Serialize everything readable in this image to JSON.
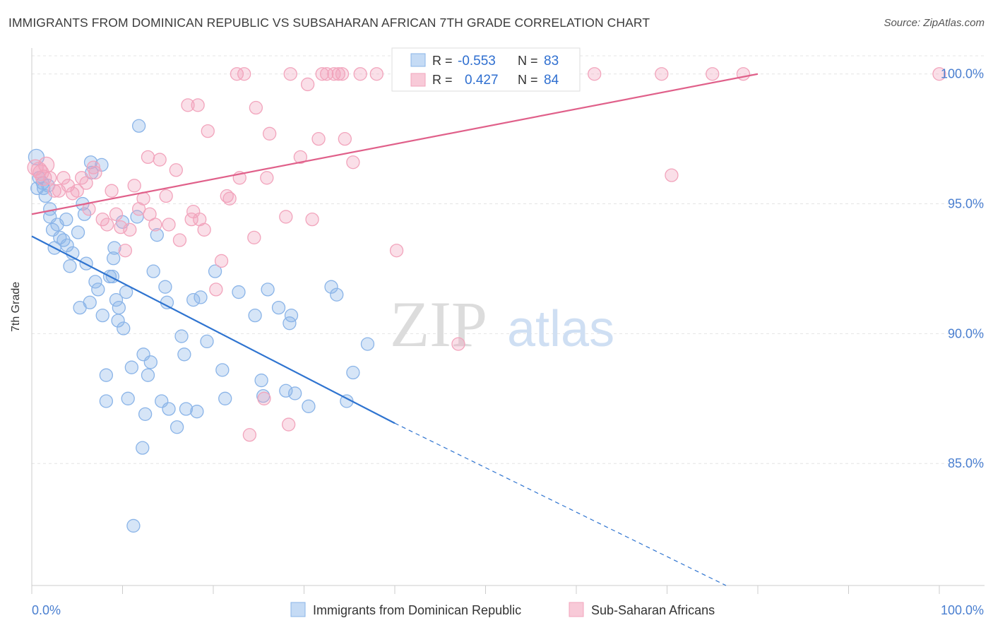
{
  "header": {
    "title": "IMMIGRANTS FROM DOMINICAN REPUBLIC VS SUBSAHARAN AFRICAN 7TH GRADE CORRELATION CHART",
    "source": "Source: ZipAtlas.com"
  },
  "watermark": {
    "zip": "ZIP",
    "atlas": "atlas"
  },
  "legend_box": {
    "rows": [
      {
        "r_label": "R =",
        "r_value": "-0.553",
        "n_label": "N =",
        "n_value": "83"
      },
      {
        "r_label": "R =",
        "r_value": "0.427",
        "n_label": "N =",
        "n_value": "84"
      }
    ]
  },
  "colors": {
    "blue": "#8ab4e8",
    "blue_line": "#2f74d0",
    "pink": "#f2a4bc",
    "pink_line": "#e0608a",
    "value_text": "#2f6fd0",
    "axis_tick_text": "#4a7fd0",
    "grid": "#e4e4e4"
  },
  "chart_data": {
    "type": "scatter",
    "title": "IMMIGRANTS FROM DOMINICAN REPUBLIC VS SUBSAHARAN AFRICAN 7TH GRADE CORRELATION CHART",
    "xlabel": "",
    "ylabel": "7th Grade",
    "xlim": [
      0,
      100
    ],
    "ylim": [
      80.3,
      100.7
    ],
    "x_tick_labels": [
      "0.0%",
      "100.0%"
    ],
    "y_ticks": [
      85,
      90,
      95,
      100
    ],
    "y_tick_labels": [
      "85.0%",
      "90.0%",
      "95.0%",
      "100.0%"
    ],
    "grid": true,
    "legend_position": "bottom",
    "series": [
      {
        "name": "Immigrants from Dominican Republic",
        "color": "#8ab4e8",
        "R": -0.553,
        "N": 83,
        "trend": {
          "x": [
            0,
            40
          ],
          "y": [
            93.75,
            86.55
          ],
          "dashed_to": {
            "x": 76.5,
            "y": 80.3
          }
        },
        "points": [
          [
            0.5,
            96.8
          ],
          [
            0.6,
            95.6
          ],
          [
            0.8,
            96.0
          ],
          [
            1.2,
            95.8
          ],
          [
            1.5,
            95.3
          ],
          [
            1.3,
            95.6
          ],
          [
            1.8,
            95.7
          ],
          [
            2.0,
            94.8
          ],
          [
            2.0,
            94.5
          ],
          [
            2.3,
            94.0
          ],
          [
            2.5,
            93.3
          ],
          [
            2.8,
            94.2
          ],
          [
            3.1,
            93.7
          ],
          [
            3.5,
            93.6
          ],
          [
            3.8,
            94.4
          ],
          [
            3.9,
            93.4
          ],
          [
            4.2,
            92.6
          ],
          [
            4.5,
            93.1
          ],
          [
            5.1,
            93.9
          ],
          [
            5.3,
            91.0
          ],
          [
            5.6,
            95.0
          ],
          [
            5.8,
            94.6
          ],
          [
            6.0,
            92.7
          ],
          [
            6.4,
            91.2
          ],
          [
            6.5,
            96.6
          ],
          [
            6.6,
            96.2
          ],
          [
            7.0,
            92.0
          ],
          [
            7.3,
            91.7
          ],
          [
            7.7,
            96.5
          ],
          [
            7.8,
            90.7
          ],
          [
            8.2,
            88.4
          ],
          [
            8.2,
            87.4
          ],
          [
            8.6,
            92.2
          ],
          [
            8.9,
            92.2
          ],
          [
            9.0,
            92.9
          ],
          [
            9.1,
            93.3
          ],
          [
            9.3,
            91.3
          ],
          [
            9.5,
            90.5
          ],
          [
            9.6,
            91.0
          ],
          [
            10.0,
            94.3
          ],
          [
            10.1,
            90.2
          ],
          [
            10.4,
            91.6
          ],
          [
            10.6,
            87.5
          ],
          [
            11.0,
            88.7
          ],
          [
            11.2,
            82.6
          ],
          [
            11.6,
            94.5
          ],
          [
            11.8,
            98.0
          ],
          [
            12.2,
            85.6
          ],
          [
            12.3,
            89.2
          ],
          [
            12.5,
            86.9
          ],
          [
            12.8,
            88.4
          ],
          [
            13.1,
            88.9
          ],
          [
            13.4,
            92.4
          ],
          [
            13.8,
            93.8
          ],
          [
            14.3,
            87.4
          ],
          [
            14.7,
            91.8
          ],
          [
            14.9,
            91.2
          ],
          [
            15.1,
            87.1
          ],
          [
            16.0,
            86.4
          ],
          [
            16.5,
            89.9
          ],
          [
            16.8,
            89.2
          ],
          [
            17.0,
            87.1
          ],
          [
            17.8,
            91.3
          ],
          [
            18.2,
            87.0
          ],
          [
            18.6,
            91.4
          ],
          [
            19.3,
            89.7
          ],
          [
            20.2,
            92.4
          ],
          [
            21.0,
            88.6
          ],
          [
            21.3,
            87.5
          ],
          [
            22.8,
            91.6
          ],
          [
            24.6,
            90.7
          ],
          [
            25.3,
            88.2
          ],
          [
            25.5,
            87.6
          ],
          [
            26.0,
            91.7
          ],
          [
            27.2,
            91.0
          ],
          [
            28.0,
            87.8
          ],
          [
            28.4,
            90.4
          ],
          [
            28.6,
            90.7
          ],
          [
            29.0,
            87.7
          ],
          [
            30.5,
            87.2
          ],
          [
            33.0,
            91.8
          ],
          [
            33.6,
            91.5
          ],
          [
            34.7,
            87.4
          ],
          [
            35.4,
            88.5
          ],
          [
            37.0,
            89.6
          ]
        ]
      },
      {
        "name": "Sub-Saharan Africans",
        "color": "#f2a4bc",
        "R": 0.427,
        "N": 84,
        "trend": {
          "x": [
            0,
            80
          ],
          "y": [
            94.6,
            100.0
          ]
        },
        "points": [
          [
            0.4,
            96.4
          ],
          [
            0.8,
            96.3
          ],
          [
            1.0,
            96.2
          ],
          [
            1.3,
            96.0
          ],
          [
            1.6,
            96.5
          ],
          [
            2.0,
            96.0
          ],
          [
            2.5,
            95.5
          ],
          [
            3.0,
            95.5
          ],
          [
            3.5,
            96.0
          ],
          [
            4.0,
            95.7
          ],
          [
            4.5,
            95.4
          ],
          [
            5.0,
            95.5
          ],
          [
            5.5,
            96.0
          ],
          [
            6.0,
            95.8
          ],
          [
            6.3,
            94.8
          ],
          [
            6.8,
            96.4
          ],
          [
            7.0,
            96.2
          ],
          [
            7.8,
            94.4
          ],
          [
            8.3,
            94.2
          ],
          [
            8.8,
            95.5
          ],
          [
            9.3,
            94.6
          ],
          [
            9.8,
            94.1
          ],
          [
            10.3,
            93.2
          ],
          [
            10.8,
            94.0
          ],
          [
            11.3,
            95.7
          ],
          [
            11.8,
            94.8
          ],
          [
            12.3,
            95.2
          ],
          [
            12.8,
            96.8
          ],
          [
            13.0,
            94.6
          ],
          [
            13.6,
            94.2
          ],
          [
            14.1,
            96.7
          ],
          [
            14.8,
            95.3
          ],
          [
            15.1,
            94.2
          ],
          [
            15.9,
            96.3
          ],
          [
            16.3,
            93.6
          ],
          [
            17.2,
            98.8
          ],
          [
            17.6,
            94.4
          ],
          [
            17.8,
            94.7
          ],
          [
            18.3,
            98.8
          ],
          [
            18.5,
            94.4
          ],
          [
            19.0,
            94.0
          ],
          [
            19.4,
            97.8
          ],
          [
            20.3,
            91.7
          ],
          [
            20.9,
            92.8
          ],
          [
            21.5,
            95.3
          ],
          [
            21.8,
            95.2
          ],
          [
            22.6,
            100.0
          ],
          [
            22.9,
            96.0
          ],
          [
            23.4,
            100.0
          ],
          [
            24.0,
            86.1
          ],
          [
            24.5,
            93.7
          ],
          [
            24.7,
            98.7
          ],
          [
            25.6,
            87.5
          ],
          [
            25.9,
            96.0
          ],
          [
            26.2,
            97.7
          ],
          [
            28.0,
            94.5
          ],
          [
            28.3,
            86.5
          ],
          [
            28.5,
            100.0
          ],
          [
            29.6,
            96.8
          ],
          [
            30.4,
            99.6
          ],
          [
            30.9,
            94.4
          ],
          [
            31.6,
            97.5
          ],
          [
            32.0,
            100.0
          ],
          [
            32.5,
            100.0
          ],
          [
            33.3,
            100.0
          ],
          [
            33.8,
            100.0
          ],
          [
            34.2,
            100.0
          ],
          [
            34.5,
            97.5
          ],
          [
            35.4,
            96.6
          ],
          [
            36.2,
            100.0
          ],
          [
            38.0,
            100.0
          ],
          [
            40.2,
            93.2
          ],
          [
            41.0,
            100.0
          ],
          [
            42.8,
            100.0
          ],
          [
            47.0,
            89.6
          ],
          [
            48.3,
            100.0
          ],
          [
            58.0,
            100.0
          ],
          [
            62.0,
            100.0
          ],
          [
            69.4,
            100.0
          ],
          [
            70.5,
            96.1
          ],
          [
            75.0,
            100.0
          ],
          [
            78.4,
            100.0
          ],
          [
            100.0,
            100.0
          ]
        ]
      }
    ]
  }
}
